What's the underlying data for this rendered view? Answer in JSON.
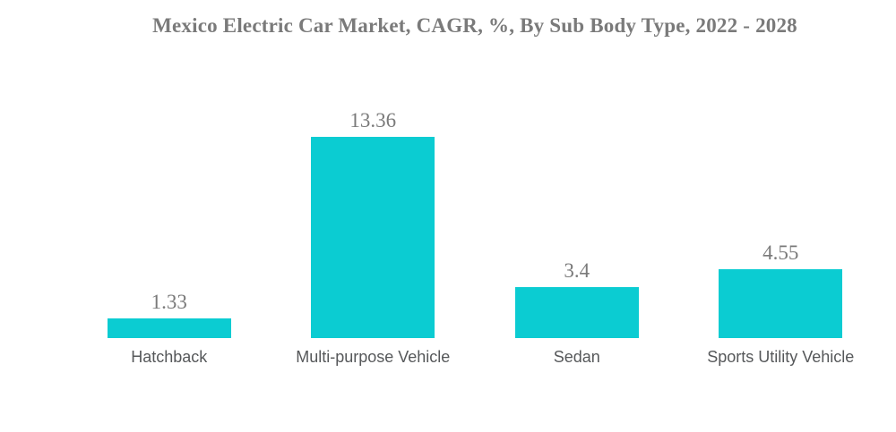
{
  "chart_data": {
    "type": "bar",
    "title": "Mexico Electric Car Market, CAGR, %, By Sub Body Type, 2022 - 2028",
    "categories": [
      "Hatchback",
      "Multi-purpose Vehicle",
      "Sedan",
      "Sports Utility Vehicle"
    ],
    "values": [
      1.33,
      13.36,
      3.4,
      4.55
    ],
    "value_labels": [
      "1.33",
      "13.36",
      "3.4",
      "4.55"
    ],
    "xlabel": "",
    "ylabel": "",
    "ylim": [
      0,
      14.8
    ],
    "grid": false,
    "legend": false,
    "axes_visible": false,
    "colors": {
      "bar": "#0bccd2",
      "title_text": "#7a7a7a",
      "value_text": "#7a7a7a",
      "category_text": "#56585a",
      "background": "#ffffff"
    }
  }
}
